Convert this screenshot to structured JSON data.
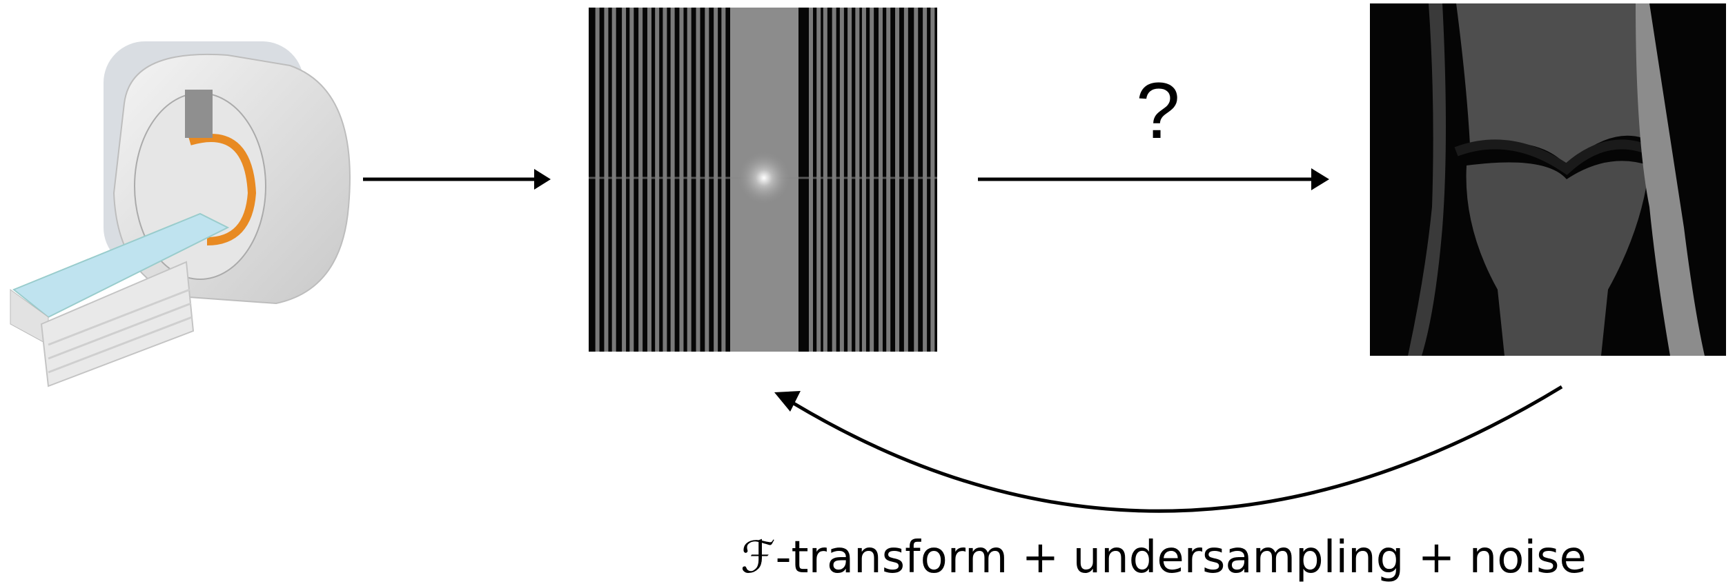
{
  "labels": {
    "question": "?",
    "forward_model": "ℱ-transform + undersampling + noise"
  }
}
